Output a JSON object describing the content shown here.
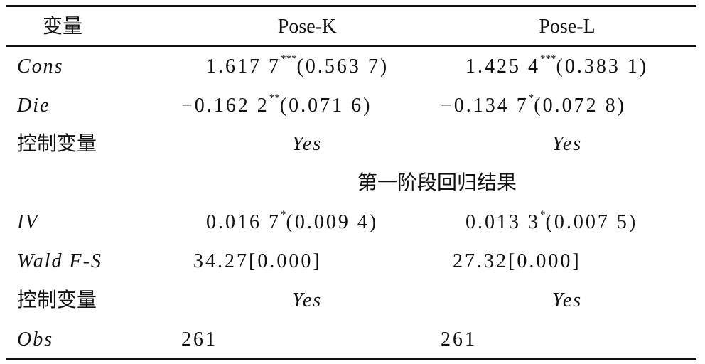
{
  "table": {
    "header": [
      "变量",
      "Pose-K",
      "Pose-L"
    ],
    "rows": [
      {
        "label": "Cons",
        "cells": [
          {
            "text": "1.617 7",
            "sup": "***",
            "se": "(0.563 7)"
          },
          {
            "text": "1.425 4",
            "sup": "***",
            "se": "(0.383 1)"
          }
        ]
      },
      {
        "label": "Die",
        "cells": [
          {
            "text": "−0.162 2",
            "sup": "**",
            "se": "(0.071 6)"
          },
          {
            "text": "−0.134 7",
            "sup": "*",
            "se": "(0.072 8)"
          }
        ]
      },
      {
        "label": "控制变量",
        "cells": [
          {
            "text": "Yes"
          },
          {
            "text": "Yes"
          }
        ]
      },
      {
        "section": "第一阶段回归结果"
      },
      {
        "label": "IV",
        "cells": [
          {
            "text": "0.016 7",
            "sup": "*",
            "se": "(0.009 4)"
          },
          {
            "text": "0.013 3",
            "sup": "*",
            "se": "(0.007 5)"
          }
        ]
      },
      {
        "label": "Wald F-S",
        "cells": [
          {
            "text": "34.27[0.000]"
          },
          {
            "text": "27.32[0.000]"
          }
        ]
      },
      {
        "label": "控制变量",
        "cells": [
          {
            "text": "Yes"
          },
          {
            "text": "Yes"
          }
        ]
      },
      {
        "label": "Obs",
        "cells": [
          {
            "text": "261"
          },
          {
            "text": "261"
          }
        ]
      }
    ]
  }
}
